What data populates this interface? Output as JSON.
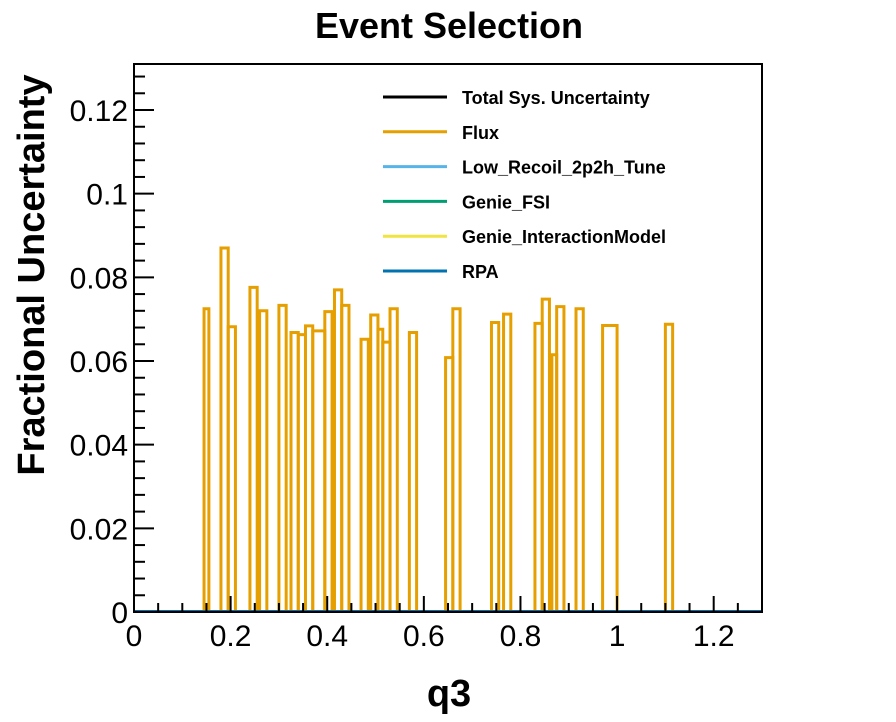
{
  "chart_data": {
    "type": "step",
    "title": "Event Selection",
    "xlabel": "q3",
    "ylabel": "Fractional Uncertainty",
    "xlim": [
      0,
      1.3
    ],
    "ylim": [
      0,
      0.131
    ],
    "x_ticks": [
      0,
      0.2,
      0.4,
      0.6,
      0.8,
      1,
      1.2
    ],
    "x_tick_labels": [
      "0",
      "0.2",
      "0.4",
      "0.6",
      "0.8",
      "1",
      "1.2"
    ],
    "y_ticks": [
      0,
      0.02,
      0.04,
      0.06,
      0.08,
      0.1,
      0.12
    ],
    "y_tick_labels": [
      "0",
      "0.02",
      "0.04",
      "0.06",
      "0.08",
      "0.1",
      "0.12"
    ],
    "grid": false,
    "legend_position": "top-right",
    "series": [
      {
        "name": "Total Sys. Uncertainty",
        "color": "#000000",
        "segments": []
      },
      {
        "name": "Flux",
        "color": "#e69f00",
        "segments": [
          {
            "x0": 0.145,
            "x1": 0.155,
            "y": 0.0725
          },
          {
            "x0": 0.18,
            "x1": 0.195,
            "y": 0.087
          },
          {
            "x0": 0.195,
            "x1": 0.21,
            "y": 0.0682
          },
          {
            "x0": 0.24,
            "x1": 0.255,
            "y": 0.0776
          },
          {
            "x0": 0.26,
            "x1": 0.275,
            "y": 0.072
          },
          {
            "x0": 0.3,
            "x1": 0.315,
            "y": 0.0733
          },
          {
            "x0": 0.325,
            "x1": 0.34,
            "y": 0.0668
          },
          {
            "x0": 0.34,
            "x1": 0.355,
            "y": 0.0663
          },
          {
            "x0": 0.355,
            "x1": 0.37,
            "y": 0.0684
          },
          {
            "x0": 0.37,
            "x1": 0.395,
            "y": 0.0672
          },
          {
            "x0": 0.395,
            "x1": 0.41,
            "y": 0.0718
          },
          {
            "x0": 0.415,
            "x1": 0.43,
            "y": 0.077
          },
          {
            "x0": 0.43,
            "x1": 0.445,
            "y": 0.0733
          },
          {
            "x0": 0.47,
            "x1": 0.485,
            "y": 0.0652
          },
          {
            "x0": 0.49,
            "x1": 0.505,
            "y": 0.071
          },
          {
            "x0": 0.505,
            "x1": 0.515,
            "y": 0.0676
          },
          {
            "x0": 0.515,
            "x1": 0.53,
            "y": 0.0645
          },
          {
            "x0": 0.53,
            "x1": 0.545,
            "y": 0.0725
          },
          {
            "x0": 0.57,
            "x1": 0.585,
            "y": 0.0668
          },
          {
            "x0": 0.645,
            "x1": 0.66,
            "y": 0.0608
          },
          {
            "x0": 0.66,
            "x1": 0.675,
            "y": 0.0725
          },
          {
            "x0": 0.74,
            "x1": 0.755,
            "y": 0.0692
          },
          {
            "x0": 0.765,
            "x1": 0.78,
            "y": 0.0712
          },
          {
            "x0": 0.83,
            "x1": 0.845,
            "y": 0.069
          },
          {
            "x0": 0.845,
            "x1": 0.86,
            "y": 0.0748
          },
          {
            "x0": 0.865,
            "x1": 0.875,
            "y": 0.0615
          },
          {
            "x0": 0.875,
            "x1": 0.89,
            "y": 0.073
          },
          {
            "x0": 0.915,
            "x1": 0.93,
            "y": 0.0725
          },
          {
            "x0": 0.97,
            "x1": 1.0,
            "y": 0.0685
          },
          {
            "x0": 1.1,
            "x1": 1.115,
            "y": 0.0688
          }
        ]
      },
      {
        "name": "Low_Recoil_2p2h_Tune",
        "color": "#56b4e9",
        "segments": []
      },
      {
        "name": "Genie_FSI",
        "color": "#009e73",
        "segments": []
      },
      {
        "name": "Genie_InteractionModel",
        "color": "#f0e442",
        "segments": []
      },
      {
        "name": "RPA",
        "color": "#0072b2",
        "segments": []
      }
    ]
  }
}
